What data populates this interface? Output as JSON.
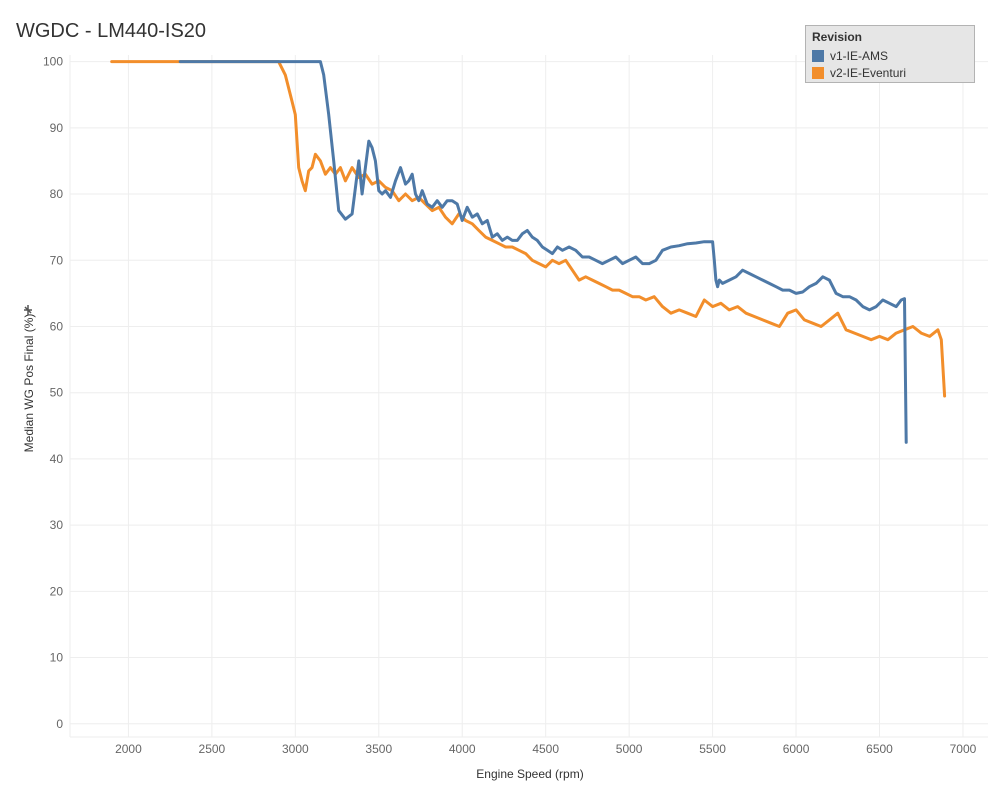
{
  "chart_data": {
    "type": "line",
    "title": "WGDC - LM440-IS20",
    "xlabel": "Engine Speed (rpm)",
    "ylabel": "Median WG Pos Final (%)",
    "xlim": [
      1650,
      7150
    ],
    "ylim": [
      -2,
      101
    ],
    "xticks": [
      2000,
      2500,
      3000,
      3500,
      4000,
      4500,
      5000,
      5500,
      6000,
      6500,
      7000
    ],
    "yticks": [
      0,
      10,
      20,
      30,
      40,
      50,
      60,
      70,
      80,
      90,
      100
    ],
    "grid": true,
    "legend": {
      "title": "Revision",
      "position": "top-right"
    },
    "series": [
      {
        "name": "v1-IE-AMS",
        "color": "#4e79a7",
        "x": [
          2310,
          2800,
          3150,
          3170,
          3200,
          3230,
          3260,
          3300,
          3340,
          3380,
          3400,
          3420,
          3440,
          3460,
          3480,
          3500,
          3520,
          3540,
          3570,
          3600,
          3630,
          3660,
          3680,
          3700,
          3720,
          3740,
          3760,
          3790,
          3820,
          3850,
          3880,
          3910,
          3940,
          3970,
          4000,
          4030,
          4060,
          4090,
          4120,
          4150,
          4180,
          4210,
          4240,
          4270,
          4300,
          4330,
          4360,
          4390,
          4420,
          4450,
          4480,
          4510,
          4540,
          4570,
          4600,
          4640,
          4680,
          4720,
          4760,
          4800,
          4840,
          4880,
          4920,
          4960,
          5000,
          5040,
          5080,
          5120,
          5160,
          5200,
          5250,
          5300,
          5350,
          5400,
          5450,
          5500,
          5510,
          5520,
          5530,
          5540,
          5560,
          5600,
          5640,
          5680,
          5720,
          5760,
          5800,
          5840,
          5880,
          5920,
          5960,
          6000,
          6040,
          6080,
          6120,
          6160,
          6200,
          6240,
          6280,
          6320,
          6360,
          6400,
          6440,
          6480,
          6520,
          6560,
          6600,
          6630,
          6650,
          6660
        ],
        "values": [
          100,
          100,
          100,
          98,
          92,
          85,
          77.5,
          76.2,
          77,
          85,
          80,
          84,
          88,
          87,
          85,
          80.5,
          80,
          80.5,
          79.5,
          82,
          84,
          81.5,
          82,
          83,
          80,
          79,
          80.5,
          78.5,
          78,
          79,
          78,
          79,
          79,
          78.5,
          76,
          78,
          76.5,
          77,
          75.5,
          76,
          73.5,
          74,
          73,
          73.5,
          73,
          73,
          74,
          74.5,
          73.5,
          73,
          72,
          71.5,
          71,
          72,
          71.5,
          72,
          71.5,
          70.5,
          70.5,
          70,
          69.5,
          70,
          70.5,
          69.5,
          70,
          70.5,
          69.5,
          69.5,
          70,
          71.5,
          72,
          72.2,
          72.5,
          72.6,
          72.8,
          72.8,
          70,
          67,
          66,
          67,
          66.5,
          67,
          67.5,
          68.5,
          68,
          67.5,
          67,
          66.5,
          66,
          65.5,
          65.5,
          65,
          65.2,
          66,
          66.5,
          67.5,
          67,
          65,
          64.5,
          64.5,
          64,
          63,
          62.5,
          63,
          64,
          63.5,
          63,
          64,
          64.2,
          42.5
        ]
      },
      {
        "name": "v2-IE-Eventuri",
        "color": "#f28e2b",
        "x": [
          1900,
          2300,
          2900,
          2940,
          2980,
          3000,
          3020,
          3040,
          3060,
          3080,
          3100,
          3120,
          3150,
          3180,
          3210,
          3240,
          3270,
          3300,
          3340,
          3380,
          3420,
          3460,
          3500,
          3540,
          3580,
          3620,
          3660,
          3700,
          3740,
          3780,
          3820,
          3860,
          3900,
          3940,
          3980,
          4020,
          4060,
          4100,
          4140,
          4180,
          4220,
          4260,
          4300,
          4340,
          4380,
          4420,
          4460,
          4500,
          4540,
          4580,
          4620,
          4660,
          4700,
          4740,
          4780,
          4820,
          4860,
          4900,
          4940,
          4980,
          5020,
          5060,
          5100,
          5150,
          5200,
          5250,
          5300,
          5350,
          5400,
          5450,
          5500,
          5550,
          5600,
          5650,
          5700,
          5750,
          5800,
          5850,
          5900,
          5950,
          6000,
          6050,
          6100,
          6150,
          6200,
          6250,
          6300,
          6350,
          6400,
          6450,
          6500,
          6550,
          6600,
          6650,
          6700,
          6750,
          6800,
          6850,
          6870,
          6890
        ],
        "values": [
          100,
          100,
          100,
          98,
          94,
          92,
          84,
          82,
          80.5,
          83.5,
          84,
          86,
          85,
          83,
          84,
          83,
          84,
          82,
          84,
          82.5,
          83,
          81.5,
          82,
          81,
          80.5,
          79,
          80,
          79,
          79.5,
          78.5,
          77.5,
          78,
          76.5,
          75.5,
          77,
          76,
          75.5,
          74.5,
          73.5,
          73,
          72.5,
          72,
          72,
          71.5,
          71,
          70,
          69.5,
          69,
          70,
          69.5,
          70,
          68.5,
          67,
          67.5,
          67,
          66.5,
          66,
          65.5,
          65.5,
          65,
          64.5,
          64.5,
          64,
          64.5,
          63,
          62,
          62.5,
          62,
          61.5,
          64,
          63,
          63.5,
          62.5,
          63,
          62,
          61.5,
          61,
          60.5,
          60,
          62,
          62.5,
          61,
          60.5,
          60,
          61,
          62,
          59.5,
          59,
          58.5,
          58,
          58.5,
          58,
          59,
          59.5,
          60,
          59,
          58.5,
          59.5,
          58,
          49.5
        ]
      }
    ]
  }
}
